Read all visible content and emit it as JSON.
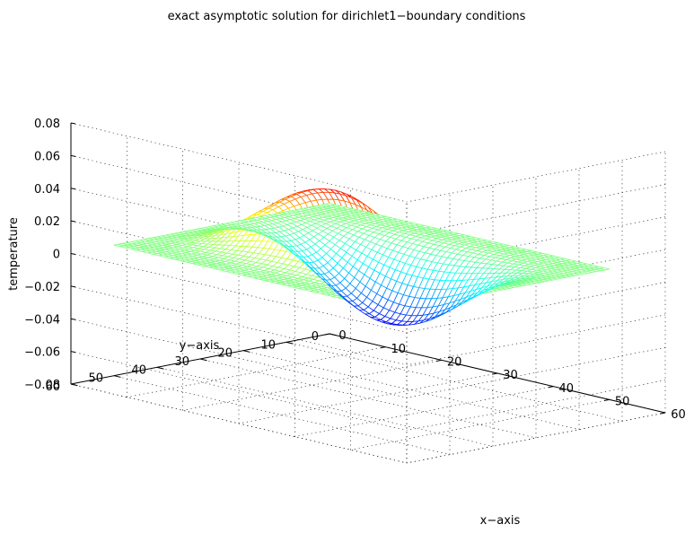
{
  "chart_data": {
    "type": "surface",
    "render": "mesh",
    "title": "exact asymptotic solution for dirichlet1−boundary conditions",
    "xlabel": "x−axis",
    "ylabel": "y−axis",
    "zlabel": "temperature",
    "xlim": [
      0,
      60
    ],
    "ylim": [
      0,
      60
    ],
    "zlim": [
      -0.08,
      0.08
    ],
    "xticks": [
      "0",
      "10",
      "20",
      "30",
      "40",
      "50",
      "60"
    ],
    "yticks": [
      "0",
      "10",
      "20",
      "30",
      "40",
      "50",
      "60"
    ],
    "zticks": [
      "−0.08",
      "−0.06",
      "−0.04",
      "−0.02",
      "0",
      "0.02",
      "0.04",
      "0.06",
      "0.08"
    ],
    "grid": true,
    "colormap": "jet",
    "surface": {
      "x_range": [
        0,
        50
      ],
      "y_range": [
        0,
        50
      ],
      "grid_points": 51,
      "peak": {
        "x": 25,
        "y": 40,
        "z": 0.06
      },
      "trough": {
        "x": 25,
        "y": 10,
        "z": -0.06
      }
    }
  }
}
